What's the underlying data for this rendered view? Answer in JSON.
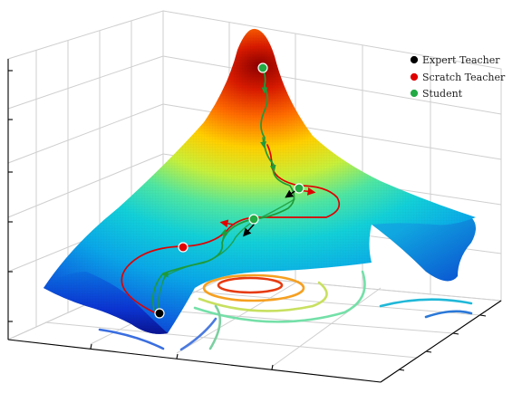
{
  "chart_data": {
    "type": "surface",
    "title": "",
    "xlabel": "",
    "ylabel": "",
    "zlabel": "",
    "grid": true,
    "legend_placement": "top-right",
    "colormap": "jet",
    "legend": [
      {
        "label": "Expert Teacher",
        "color": "#000000"
      },
      {
        "label": "Scratch Teacher",
        "color": "#ff0000"
      },
      {
        "label": "Student",
        "color": "#22aa44"
      }
    ],
    "series": [
      {
        "name": "Expert Teacher",
        "color": "#000000"
      },
      {
        "name": "Scratch Teacher",
        "color": "#ff0000"
      },
      {
        "name": "Student",
        "color": "#22aa44"
      }
    ]
  }
}
